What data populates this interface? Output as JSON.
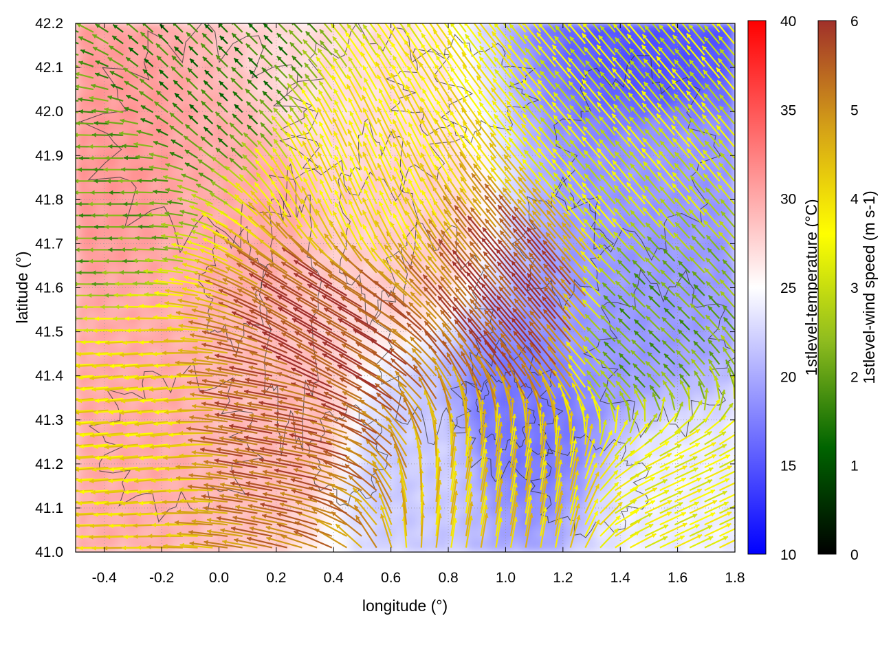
{
  "chart_data": {
    "type": "heatmap",
    "subtype": "temperature field with wind vectors and terrain contours",
    "xlabel": "longitude (°)",
    "ylabel": "latitude (°)",
    "xlim": [
      -0.5,
      1.8
    ],
    "ylim": [
      41.0,
      42.2
    ],
    "x_ticks": [
      "-0.4",
      "-0.2",
      "0.0",
      "0.2",
      "0.4",
      "0.6",
      "0.8",
      "1.0",
      "1.2",
      "1.4",
      "1.6",
      "1.8"
    ],
    "y_ticks": [
      "41.0",
      "41.1",
      "41.2",
      "41.3",
      "41.4",
      "41.5",
      "41.6",
      "41.7",
      "41.8",
      "41.9",
      "42.0",
      "42.1",
      "42.2"
    ],
    "grid": true,
    "temperature_colorbar": {
      "label": "1stlevel-temperature (°C)",
      "range": [
        10,
        40
      ],
      "ticks": [
        "10",
        "15",
        "20",
        "25",
        "30",
        "35",
        "40"
      ],
      "colors": [
        "#0000ff",
        "#ffffff",
        "#ff0000"
      ]
    },
    "wind_colorbar": {
      "label": "1stlevel-wind speed (m s-1)",
      "range": [
        0,
        6
      ],
      "ticks": [
        "0",
        "1",
        "2",
        "3",
        "4",
        "5",
        "6"
      ],
      "colors": [
        "#000000",
        "#006400",
        "#8fbc1f",
        "#ffff00",
        "#d4a017",
        "#a0302a"
      ]
    },
    "temperature_regions": [
      {
        "lon": -0.4,
        "lat": 41.9,
        "temp": 31
      },
      {
        "lon": -0.3,
        "lat": 41.3,
        "temp": 30
      },
      {
        "lon": 0.1,
        "lat": 41.8,
        "temp": 30
      },
      {
        "lon": 0.2,
        "lat": 41.3,
        "temp": 29
      },
      {
        "lon": 0.4,
        "lat": 42.0,
        "temp": 27
      },
      {
        "lon": 0.6,
        "lat": 41.7,
        "temp": 28
      },
      {
        "lon": 0.7,
        "lat": 41.2,
        "temp": 22
      },
      {
        "lon": 1.05,
        "lat": 41.3,
        "temp": 17
      },
      {
        "lon": 1.4,
        "lat": 41.55,
        "temp": 19
      },
      {
        "lon": 1.55,
        "lat": 42.15,
        "temp": 15
      },
      {
        "lon": 1.6,
        "lat": 41.85,
        "temp": 19
      },
      {
        "lon": 1.6,
        "lat": 41.1,
        "temp": 24
      }
    ],
    "wind_features": [
      {
        "lon": -0.2,
        "lat": 41.3,
        "dir_deg": 185,
        "speed": 4.0
      },
      {
        "lon": 0.2,
        "lat": 41.3,
        "dir_deg": 170,
        "speed": 5.5
      },
      {
        "lon": 0.4,
        "lat": 41.5,
        "dir_deg": 150,
        "speed": 5.8
      },
      {
        "lon": 1.1,
        "lat": 41.55,
        "dir_deg": 130,
        "speed": 5.8
      },
      {
        "lon": 0.5,
        "lat": 41.8,
        "dir_deg": 115,
        "speed": 3.8
      },
      {
        "lon": -0.4,
        "lat": 41.8,
        "dir_deg": 180,
        "speed": 2.0
      },
      {
        "lon": 1.5,
        "lat": 41.5,
        "dir_deg": 135,
        "speed": 2.0
      },
      {
        "lon": 1.6,
        "lat": 41.1,
        "dir_deg": 25,
        "speed": 3.5
      },
      {
        "lon": 1.4,
        "lat": 41.9,
        "dir_deg": 130,
        "speed": 3.2
      },
      {
        "lon": 0.0,
        "lat": 42.1,
        "dir_deg": 135,
        "speed": 1.5
      },
      {
        "lon": 1.0,
        "lat": 41.1,
        "dir_deg": 80,
        "speed": 4.2
      }
    ]
  }
}
